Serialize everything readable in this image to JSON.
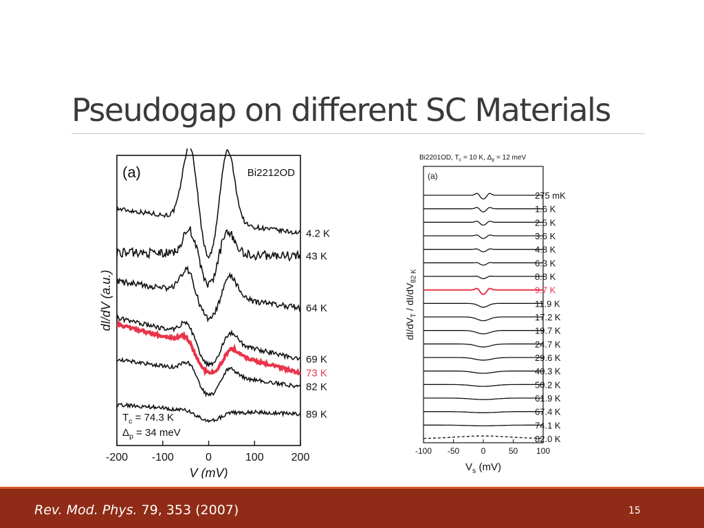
{
  "slide": {
    "title": "Pseudogap on different SC Materials",
    "reference_journal": "Rev. Mod. Phys.",
    "reference_rest": " 79, 353 (2007)",
    "page_number": "15"
  },
  "colors": {
    "footer": "#8f2b16",
    "footer_line": "#d25a22",
    "highlight": "#e8354a",
    "trace": "#111111"
  },
  "chart_data": [
    {
      "type": "line",
      "panel_label": "(a)",
      "sample_label": "Bi2212OD",
      "xlabel": "V  (mV)",
      "ylabel": "dI/dV  (a.u.)",
      "xlim": [
        -200,
        200
      ],
      "xticks": [
        -200,
        -100,
        0,
        100,
        200
      ],
      "annotation_tc": "T_c = 74.3 K",
      "annotation_delta": "Δ_p = 34 meV",
      "highlight_series": "73 K",
      "series": [
        {
          "name": "4.2 K",
          "start": 1.35,
          "end": 1.03,
          "dip": 0.55,
          "peak": 1.05,
          "peak_pos": 40,
          "width": 22,
          "noise": 0.03
        },
        {
          "name": "43 K",
          "start": 0.78,
          "end": 0.73,
          "dip": 0.45,
          "peak": 0.42,
          "peak_pos": 38,
          "width": 24,
          "noise": 0.06
        },
        {
          "name": "64 K",
          "start": 0.4,
          "end": 0.05,
          "dip": 0.32,
          "peak": 0.35,
          "peak_pos": 45,
          "width": 26,
          "noise": 0.04
        },
        {
          "name": "69 K",
          "start": -0.08,
          "end": -0.62,
          "dip": 0.35,
          "peak": 0.22,
          "peak_pos": 45,
          "width": 28,
          "noise": 0.03
        },
        {
          "name": "73 K",
          "start": -0.16,
          "end": -0.8,
          "dip": 0.32,
          "peak": 0.15,
          "peak_pos": 48,
          "width": 30,
          "noise": 0.02
        },
        {
          "name": "82 K",
          "start": -0.62,
          "end": -0.98,
          "dip": 0.3,
          "peak": 0.18,
          "peak_pos": 42,
          "width": 28,
          "noise": 0.025
        },
        {
          "name": "89 K",
          "start": -1.22,
          "end": -1.34,
          "dip": 0.14,
          "peak": 0.04,
          "peak_pos": 45,
          "width": 40,
          "noise": 0.025
        }
      ]
    },
    {
      "type": "line",
      "title": "Bi2201OD, T_c = 10 K, Δ_p = 12 meV",
      "panel_label": "(a)",
      "xlabel": "V_s  (mV)",
      "ylabel": "dI/dV_T  /  dI/dV_82 K",
      "xlim": [
        -100,
        100
      ],
      "xticks": [
        -100,
        -50,
        0,
        50,
        100
      ],
      "highlight_series": "9.7 K",
      "series": [
        {
          "name": "275 mK",
          "dip": 0.5,
          "peak": 0.3,
          "width": 5
        },
        {
          "name": "1.6 K",
          "dip": 0.42,
          "peak": 0.22,
          "width": 5
        },
        {
          "name": "2.5 K",
          "dip": 0.38,
          "peak": 0.18,
          "width": 5
        },
        {
          "name": "3.6 K",
          "dip": 0.36,
          "peak": 0.14,
          "width": 5
        },
        {
          "name": "4.8 K",
          "dip": 0.32,
          "peak": 0.12,
          "width": 6
        },
        {
          "name": "6.3 K",
          "dip": 0.3,
          "peak": 0.1,
          "width": 6
        },
        {
          "name": "8.8 K",
          "dip": 0.3,
          "peak": 0.08,
          "width": 6
        },
        {
          "name": "9.7 K",
          "dip": 0.6,
          "peak": 0.25,
          "width": 5
        },
        {
          "name": "11.9 K",
          "dip": 0.5,
          "peak": 0.0,
          "width": 8
        },
        {
          "name": "17.2 K",
          "dip": 0.5,
          "peak": 0.0,
          "width": 10
        },
        {
          "name": "19.7 K",
          "dip": 0.45,
          "peak": 0.0,
          "width": 11
        },
        {
          "name": "24.7 K",
          "dip": 0.4,
          "peak": 0.0,
          "width": 12
        },
        {
          "name": "29.6 K",
          "dip": 0.35,
          "peak": 0.0,
          "width": 14
        },
        {
          "name": "40.3 K",
          "dip": 0.3,
          "peak": 0.0,
          "width": 16
        },
        {
          "name": "50.2 K",
          "dip": 0.24,
          "peak": 0.0,
          "width": 18
        },
        {
          "name": "61.9 K",
          "dip": 0.2,
          "peak": 0.0,
          "width": 20
        },
        {
          "name": "67.4 K",
          "dip": 0.15,
          "peak": 0.0,
          "width": 22
        },
        {
          "name": "74.1 K",
          "dip": 0.1,
          "peak": 0.0,
          "width": 24
        },
        {
          "name": "82.0 K",
          "dip": -0.35,
          "peak": 0.0,
          "width": 45,
          "dashed": true
        }
      ]
    }
  ]
}
